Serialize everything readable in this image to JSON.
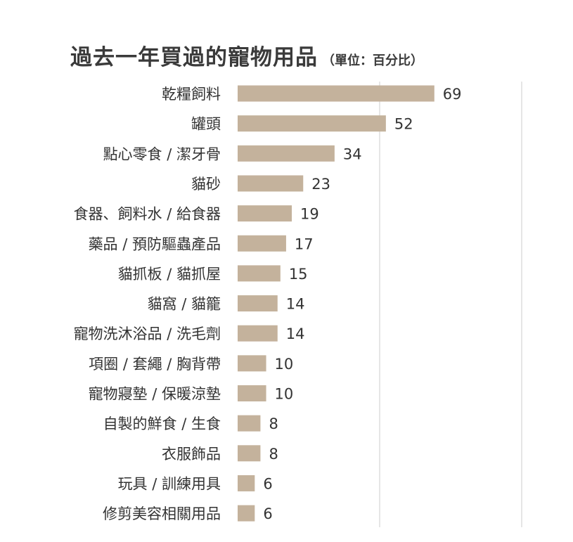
{
  "header": {
    "title": "過去一年買過的寵物用品",
    "subtitle": "（單位：百分比）"
  },
  "chart_data": {
    "type": "bar",
    "orientation": "horizontal",
    "title": "過去一年買過的寵物用品",
    "subtitle": "（單位：百分比）",
    "categories": [
      "乾糧飼料",
      "罐頭",
      "點心零食 / 潔牙骨",
      "貓砂",
      "食器、飼料水 / 給食器",
      "藥品 / 預防驅蟲產品",
      "貓抓板 / 貓抓屋",
      "貓窩 / 貓籠",
      "寵物洗沐浴品 / 洗毛劑",
      "項圈 / 套繩 / 胸背帶",
      "寵物寢墊 / 保暖涼墊",
      "自製的鮮食 / 生食",
      "衣服飾品",
      "玩具 / 訓練用具",
      "修剪美容相關用品"
    ],
    "values": [
      69,
      52,
      34,
      23,
      19,
      17,
      15,
      14,
      14,
      10,
      10,
      8,
      8,
      6,
      6
    ],
    "xlim": [
      0,
      80
    ],
    "grid": true,
    "bar_color": "#c4b29c",
    "grid_color": "#d6d6d6"
  }
}
